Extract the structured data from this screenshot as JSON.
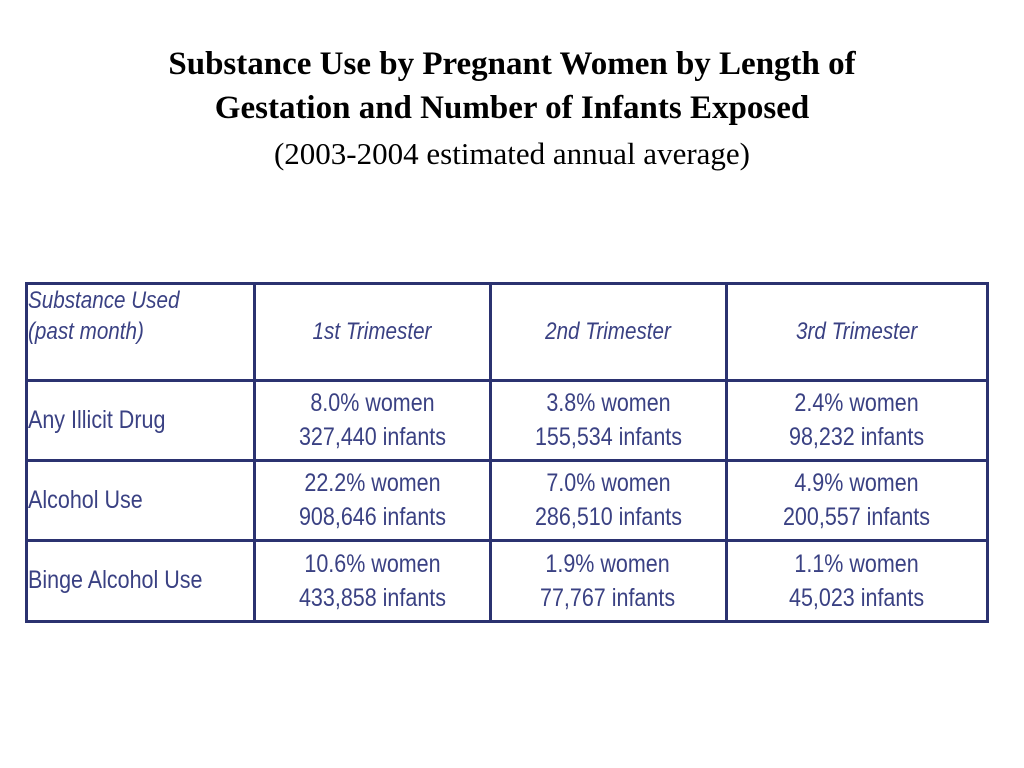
{
  "title": {
    "line1": "Substance Use by Pregnant Women by Length of",
    "line2": "Gestation and Number of Infants Exposed",
    "subtitle": "(2003-2004 estimated annual average)"
  },
  "table": {
    "header": {
      "first_line1": "Substance Used",
      "first_line2": "(past month)",
      "columns": [
        "1st Trimester",
        "2nd Trimester",
        "3rd Trimester"
      ]
    },
    "rows": [
      {
        "label": "Any Illicit Drug",
        "cells": [
          {
            "women": "8.0% women",
            "infants": "327,440 infants"
          },
          {
            "women": "3.8% women",
            "infants": "155,534 infants"
          },
          {
            "women": "2.4% women",
            "infants": "98,232 infants"
          }
        ]
      },
      {
        "label": "Alcohol Use",
        "cells": [
          {
            "women": "22.2% women",
            "infants": "908,646 infants"
          },
          {
            "women": "7.0% women",
            "infants": "286,510 infants"
          },
          {
            "women": "4.9% women",
            "infants": "200,557 infants"
          }
        ]
      },
      {
        "label": "Binge Alcohol Use",
        "cells": [
          {
            "women": "10.6% women",
            "infants": "433,858 infants"
          },
          {
            "women": "1.9% women",
            "infants": "77,767 infants"
          },
          {
            "women": "1.1% women",
            "infants": "45,023 infants"
          }
        ]
      }
    ]
  },
  "colors": {
    "border": "#2b3270",
    "text": "#3a4183"
  }
}
